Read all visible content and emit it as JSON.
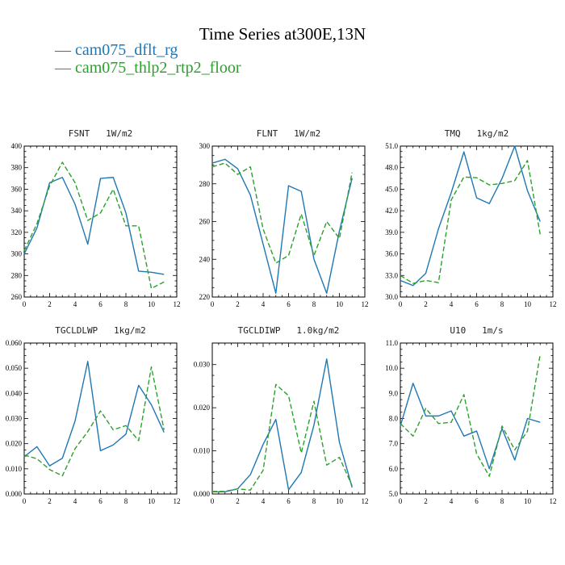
{
  "title": "Time Series at300E,13N",
  "legend": [
    {
      "label": "— cam075_dflt_rg",
      "color": "#1f77b4"
    },
    {
      "label": "— cam075_thlp2_rtp2_floor",
      "color": "#2ca02c"
    }
  ],
  "chart_data": [
    {
      "type": "line",
      "title": "FSNT   1W/m2",
      "x": [
        0,
        1,
        2,
        3,
        4,
        5,
        6,
        7,
        8,
        9,
        10,
        11
      ],
      "xlim": [
        0,
        12
      ],
      "xticks": [
        0,
        2,
        4,
        6,
        8,
        10,
        12
      ],
      "ylim": [
        260,
        400
      ],
      "yticks": [
        260,
        280,
        300,
        320,
        340,
        360,
        380,
        400
      ],
      "ytick_labels": [
        "260",
        "280",
        "300",
        "320",
        "340",
        "360",
        "380",
        "400"
      ],
      "series": [
        {
          "name": "cam075_dflt_rg",
          "color": "#1f77b4",
          "dash": "",
          "values": [
            300,
            324,
            366,
            371,
            346,
            309,
            370,
            371,
            338,
            284,
            283,
            281
          ]
        },
        {
          "name": "cam075_thlp2_rtp2_floor",
          "color": "#2ca02c",
          "dash": "6,3",
          "values": [
            303,
            328,
            363,
            385,
            366,
            331,
            338,
            360,
            326,
            326,
            268,
            274
          ]
        }
      ]
    },
    {
      "type": "line",
      "title": "FLNT   1W/m2",
      "x": [
        0,
        1,
        2,
        3,
        4,
        5,
        6,
        7,
        8,
        9,
        10,
        11
      ],
      "xlim": [
        0,
        12
      ],
      "xticks": [
        0,
        2,
        4,
        6,
        8,
        10,
        12
      ],
      "ylim": [
        220,
        300
      ],
      "yticks": [
        220,
        240,
        260,
        280,
        300
      ],
      "ytick_labels": [
        "220",
        "240",
        "260",
        "280",
        "300"
      ],
      "series": [
        {
          "name": "cam075_dflt_rg",
          "color": "#1f77b4",
          "dash": "",
          "values": [
            291,
            293,
            288,
            274,
            248,
            222,
            279,
            276,
            240,
            222,
            255,
            283
          ]
        },
        {
          "name": "cam075_thlp2_rtp2_floor",
          "color": "#2ca02c",
          "dash": "6,3",
          "values": [
            289,
            291,
            285,
            289,
            256,
            238,
            242,
            264,
            242,
            260,
            251,
            286
          ]
        }
      ]
    },
    {
      "type": "line",
      "title": "TMQ   1kg/m2",
      "x": [
        0,
        1,
        2,
        3,
        4,
        5,
        6,
        7,
        8,
        9,
        10,
        11
      ],
      "xlim": [
        0,
        12
      ],
      "xticks": [
        0,
        2,
        4,
        6,
        8,
        10,
        12
      ],
      "ylim": [
        30,
        51
      ],
      "yticks": [
        30,
        33,
        36,
        39,
        42,
        45,
        48,
        51
      ],
      "ytick_labels": [
        "30.0",
        "33.0",
        "36.0",
        "39.0",
        "42.0",
        "45.0",
        "48.0",
        "51.0"
      ],
      "series": [
        {
          "name": "cam075_dflt_rg",
          "color": "#1f77b4",
          "dash": "",
          "values": [
            32.3,
            31.6,
            33.3,
            39.5,
            44.5,
            50.2,
            43.8,
            43.0,
            46.5,
            51.0,
            44.8,
            40.5
          ]
        },
        {
          "name": "cam075_thlp2_rtp2_floor",
          "color": "#2ca02c",
          "dash": "6,3",
          "values": [
            33.0,
            31.9,
            32.3,
            32.0,
            43.5,
            46.7,
            46.6,
            45.6,
            45.8,
            46.2,
            49.0,
            38.7
          ]
        }
      ]
    },
    {
      "type": "line",
      "title": "TGCLDLWP   1kg/m2",
      "x": [
        0,
        1,
        2,
        3,
        4,
        5,
        6,
        7,
        8,
        9,
        10,
        11
      ],
      "xlim": [
        0,
        12
      ],
      "xticks": [
        0,
        2,
        4,
        6,
        8,
        10,
        12
      ],
      "ylim": [
        0,
        0.06
      ],
      "yticks": [
        0,
        0.01,
        0.02,
        0.03,
        0.04,
        0.05,
        0.06
      ],
      "ytick_labels": [
        "0.000",
        "0.010",
        "0.020",
        "0.030",
        "0.040",
        "0.050",
        "0.060"
      ],
      "series": [
        {
          "name": "cam075_dflt_rg",
          "color": "#1f77b4",
          "dash": "",
          "values": [
            0.0148,
            0.0188,
            0.0112,
            0.0142,
            0.029,
            0.0527,
            0.0172,
            0.0195,
            0.0238,
            0.0432,
            0.0355,
            0.0245
          ]
        },
        {
          "name": "cam075_thlp2_rtp2_floor",
          "color": "#2ca02c",
          "dash": "6,3",
          "values": [
            0.0155,
            0.014,
            0.0097,
            0.0072,
            0.018,
            0.0248,
            0.033,
            0.0255,
            0.0272,
            0.0212,
            0.0505,
            0.0255
          ]
        }
      ]
    },
    {
      "type": "line",
      "title": "TGCLDIWP   1.0kg/m2",
      "x": [
        0,
        1,
        2,
        3,
        4,
        5,
        6,
        7,
        8,
        9,
        10,
        11
      ],
      "xlim": [
        0,
        12
      ],
      "xticks": [
        0,
        2,
        4,
        6,
        8,
        10,
        12
      ],
      "ylim": [
        0,
        0.035
      ],
      "yticks": [
        0,
        0.01,
        0.02,
        0.03
      ],
      "ytick_labels": [
        "0.000",
        "0.010",
        "0.020",
        "0.030"
      ],
      "series": [
        {
          "name": "cam075_dflt_rg",
          "color": "#1f77b4",
          "dash": "",
          "values": [
            0.0005,
            0.0005,
            0.0012,
            0.0045,
            0.0115,
            0.0173,
            0.001,
            0.005,
            0.016,
            0.0313,
            0.012,
            0.0015
          ]
        },
        {
          "name": "cam075_thlp2_rtp2_floor",
          "color": "#2ca02c",
          "dash": "6,3",
          "values": [
            0.0006,
            0.0006,
            0.0012,
            0.0009,
            0.0055,
            0.0254,
            0.0228,
            0.0095,
            0.0215,
            0.0067,
            0.0085,
            0.0019
          ]
        }
      ]
    },
    {
      "type": "line",
      "title": "U10   1m/s",
      "x": [
        0,
        1,
        2,
        3,
        4,
        5,
        6,
        7,
        8,
        9,
        10,
        11
      ],
      "xlim": [
        0,
        12
      ],
      "xticks": [
        0,
        2,
        4,
        6,
        8,
        10,
        12
      ],
      "ylim": [
        5,
        11
      ],
      "yticks": [
        5,
        6,
        7,
        8,
        9,
        10,
        11
      ],
      "ytick_labels": [
        "5.0",
        "6.0",
        "7.0",
        "8.0",
        "9.0",
        "10.0",
        "11.0"
      ],
      "series": [
        {
          "name": "cam075_dflt_rg",
          "color": "#1f77b4",
          "dash": "",
          "values": [
            7.7,
            9.4,
            8.1,
            8.1,
            8.3,
            7.3,
            7.5,
            6.0,
            7.6,
            6.35,
            8.0,
            7.85
          ]
        },
        {
          "name": "cam075_thlp2_rtp2_floor",
          "color": "#2ca02c",
          "dash": "6,3",
          "values": [
            7.8,
            7.3,
            8.4,
            7.8,
            7.85,
            8.95,
            6.6,
            5.7,
            7.7,
            6.75,
            7.5,
            10.55
          ]
        }
      ]
    }
  ]
}
